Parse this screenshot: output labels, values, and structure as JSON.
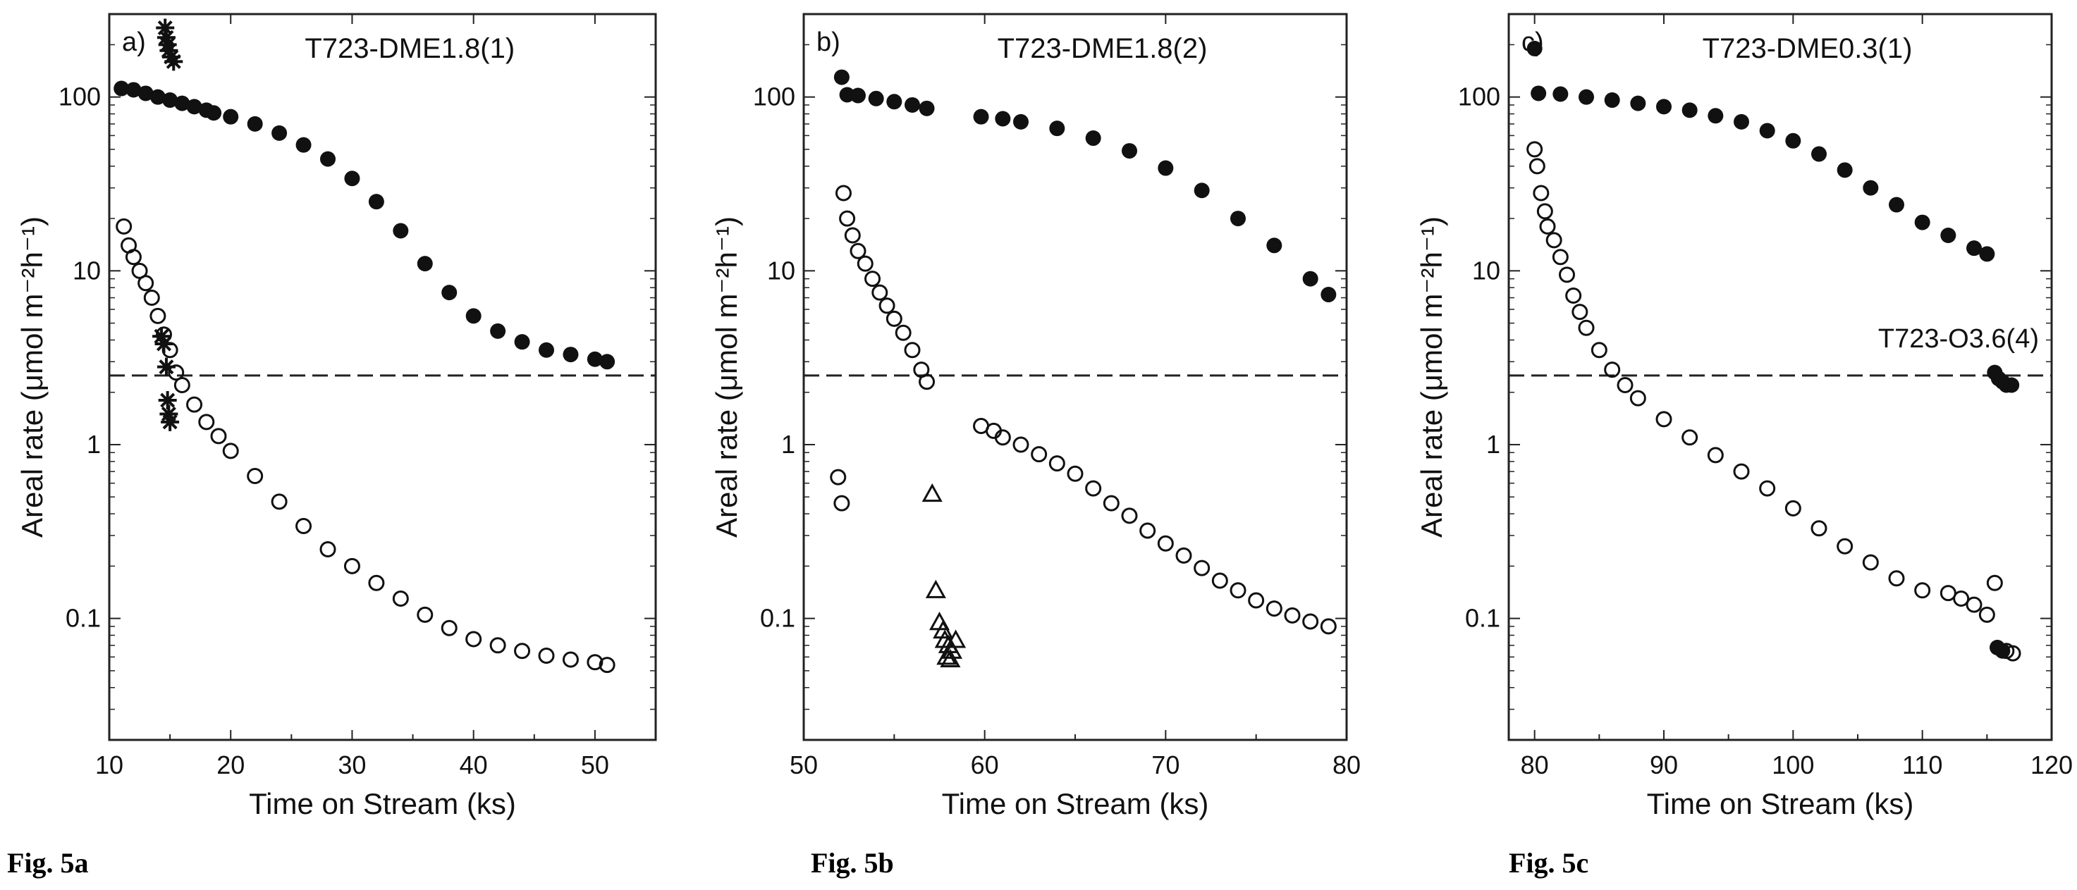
{
  "chart_data": [
    {
      "type": "scatter",
      "panel_label": "a)",
      "annotation": "T723-DME1.8(1)",
      "caption": "Fig. 5a",
      "xlabel": "Time on Stream (ks)",
      "ylabel": "Areal rate (μmol m⁻²h⁻¹)",
      "xlim": [
        10,
        55
      ],
      "ylim": [
        0.02,
        300
      ],
      "yscale": "log",
      "x_ticks": [
        10,
        20,
        30,
        40,
        50
      ],
      "y_ticks": [
        0.1,
        1,
        10,
        100
      ],
      "y_tick_labels": [
        "0.1",
        "1",
        "10",
        "100"
      ],
      "hline": 2.5,
      "series": [
        {
          "marker": "filled-circle",
          "points": [
            [
              11,
              112
            ],
            [
              12,
              110
            ],
            [
              13,
              105
            ],
            [
              14,
              100
            ],
            [
              15,
              96
            ],
            [
              16,
              92
            ],
            [
              17,
              88
            ],
            [
              18,
              84
            ],
            [
              18.6,
              81
            ],
            [
              20,
              77
            ],
            [
              22,
              70
            ],
            [
              24,
              62
            ],
            [
              26,
              53
            ],
            [
              28,
              44
            ],
            [
              30,
              34
            ],
            [
              32,
              25
            ],
            [
              34,
              17
            ],
            [
              36,
              11
            ],
            [
              38,
              7.5
            ],
            [
              40,
              5.5
            ],
            [
              42,
              4.5
            ],
            [
              44,
              3.9
            ],
            [
              46,
              3.5
            ],
            [
              48,
              3.3
            ],
            [
              50,
              3.1
            ],
            [
              51,
              3.0
            ]
          ]
        },
        {
          "marker": "open-circle",
          "points": [
            [
              11.2,
              18
            ],
            [
              11.6,
              14
            ],
            [
              12,
              12
            ],
            [
              12.5,
              10
            ],
            [
              13,
              8.5
            ],
            [
              13.5,
              7
            ],
            [
              14,
              5.5
            ],
            [
              14.5,
              4.3
            ],
            [
              15,
              3.5
            ],
            [
              15.5,
              2.6
            ],
            [
              16,
              2.2
            ],
            [
              17,
              1.7
            ],
            [
              18,
              1.35
            ],
            [
              19,
              1.12
            ],
            [
              20,
              0.92
            ],
            [
              22,
              0.66
            ],
            [
              24,
              0.47
            ],
            [
              26,
              0.34
            ],
            [
              28,
              0.25
            ],
            [
              30,
              0.2
            ],
            [
              32,
              0.16
            ],
            [
              34,
              0.13
            ],
            [
              36,
              0.105
            ],
            [
              38,
              0.088
            ],
            [
              40,
              0.076
            ],
            [
              42,
              0.07
            ],
            [
              44,
              0.065
            ],
            [
              46,
              0.061
            ],
            [
              48,
              0.058
            ],
            [
              50,
              0.056
            ],
            [
              51,
              0.054
            ]
          ]
        },
        {
          "marker": "star",
          "points": [
            [
              14.6,
              250
            ],
            [
              14.7,
              220
            ],
            [
              14.8,
              200
            ],
            [
              14.9,
              185
            ],
            [
              15.1,
              170
            ],
            [
              15.3,
              160
            ],
            [
              14.3,
              4.2
            ],
            [
              14.5,
              3.8
            ],
            [
              14.7,
              2.8
            ],
            [
              14.8,
              1.8
            ],
            [
              14.9,
              1.5
            ],
            [
              15.0,
              1.35
            ]
          ]
        }
      ]
    },
    {
      "type": "scatter",
      "panel_label": "b)",
      "annotation": "T723-DME1.8(2)",
      "caption": "Fig. 5b",
      "xlabel": "Time on Stream (ks)",
      "ylabel": "Areal rate (μmol m⁻²h⁻¹)",
      "xlim": [
        50,
        80
      ],
      "ylim": [
        0.02,
        300
      ],
      "yscale": "log",
      "x_ticks": [
        50,
        60,
        70,
        80
      ],
      "y_ticks": [
        0.1,
        1,
        10,
        100
      ],
      "y_tick_labels": [
        "0.1",
        "1",
        "10",
        "100"
      ],
      "hline": 2.5,
      "series": [
        {
          "marker": "filled-circle",
          "points": [
            [
              52.1,
              130
            ],
            [
              52.4,
              103
            ],
            [
              53,
              102
            ],
            [
              54,
              98
            ],
            [
              55,
              94
            ],
            [
              56,
              90
            ],
            [
              56.8,
              86
            ],
            [
              59.8,
              77
            ],
            [
              61,
              75
            ],
            [
              62,
              72
            ],
            [
              64,
              66
            ],
            [
              66,
              58
            ],
            [
              68,
              49
            ],
            [
              70,
              39
            ],
            [
              72,
              29
            ],
            [
              74,
              20
            ],
            [
              76,
              14
            ],
            [
              78,
              9
            ],
            [
              79,
              7.3
            ]
          ]
        },
        {
          "marker": "open-circle",
          "points": [
            [
              52.2,
              28
            ],
            [
              52.4,
              20
            ],
            [
              52.7,
              16
            ],
            [
              53,
              13
            ],
            [
              53.4,
              11
            ],
            [
              53.8,
              9
            ],
            [
              54.2,
              7.5
            ],
            [
              54.6,
              6.3
            ],
            [
              55,
              5.3
            ],
            [
              55.5,
              4.4
            ],
            [
              56,
              3.5
            ],
            [
              56.5,
              2.7
            ],
            [
              56.8,
              2.3
            ],
            [
              51.9,
              0.65
            ],
            [
              52.1,
              0.46
            ],
            [
              59.8,
              1.28
            ],
            [
              60.5,
              1.2
            ],
            [
              61,
              1.1
            ],
            [
              62,
              1.0
            ],
            [
              63,
              0.88
            ],
            [
              64,
              0.78
            ],
            [
              65,
              0.68
            ],
            [
              66,
              0.56
            ],
            [
              67,
              0.46
            ],
            [
              68,
              0.39
            ],
            [
              69,
              0.32
            ],
            [
              70,
              0.27
            ],
            [
              71,
              0.23
            ],
            [
              72,
              0.195
            ],
            [
              73,
              0.165
            ],
            [
              74,
              0.145
            ],
            [
              75,
              0.127
            ],
            [
              76,
              0.114
            ],
            [
              77,
              0.104
            ],
            [
              78,
              0.096
            ],
            [
              79,
              0.09
            ]
          ]
        },
        {
          "marker": "open-triangle",
          "points": [
            [
              57.1,
              0.52
            ],
            [
              57.3,
              0.145
            ],
            [
              57.5,
              0.095
            ],
            [
              57.7,
              0.085
            ],
            [
              57.8,
              0.075
            ],
            [
              58,
              0.07
            ],
            [
              58.2,
              0.065
            ],
            [
              58.4,
              0.075
            ],
            [
              57.9,
              0.06
            ],
            [
              58.1,
              0.058
            ]
          ]
        }
      ]
    },
    {
      "type": "scatter",
      "panel_label": "c)",
      "annotation": "T723-DME0.3(1)",
      "annotation_2": "T723-O3.6(4)",
      "caption": "Fig. 5c",
      "xlabel": "Time on Stream (ks)",
      "ylabel": "Areal rate (μmol m⁻²h⁻¹)",
      "xlim": [
        78,
        120
      ],
      "ylim": [
        0.02,
        300
      ],
      "yscale": "log",
      "x_ticks": [
        80,
        90,
        100,
        110,
        120
      ],
      "y_ticks": [
        0.1,
        1,
        10,
        100
      ],
      "y_tick_labels": [
        "0.1",
        "1",
        "10",
        "100"
      ],
      "hline": 2.5,
      "series": [
        {
          "marker": "filled-circle",
          "points": [
            [
              80,
              190
            ],
            [
              80.3,
              105
            ],
            [
              82,
              104
            ],
            [
              84,
              100
            ],
            [
              86,
              96
            ],
            [
              88,
              92
            ],
            [
              90,
              88
            ],
            [
              92,
              84
            ],
            [
              94,
              78
            ],
            [
              96,
              72
            ],
            [
              98,
              64
            ],
            [
              100,
              56
            ],
            [
              102,
              47
            ],
            [
              104,
              38
            ],
            [
              106,
              30
            ],
            [
              108,
              24
            ],
            [
              110,
              19
            ],
            [
              112,
              16
            ],
            [
              114,
              13.5
            ],
            [
              115,
              12.5
            ],
            [
              115.6,
              2.6
            ],
            [
              115.9,
              2.4
            ],
            [
              116.2,
              2.3
            ],
            [
              116.5,
              2.2
            ],
            [
              116.9,
              2.2
            ],
            [
              115.8,
              0.068
            ],
            [
              116.2,
              0.065
            ]
          ]
        },
        {
          "marker": "open-circle",
          "points": [
            [
              80,
              50
            ],
            [
              80.2,
              40
            ],
            [
              80.5,
              28
            ],
            [
              80.8,
              22
            ],
            [
              81,
              18
            ],
            [
              81.5,
              15
            ],
            [
              82,
              12
            ],
            [
              82.5,
              9.5
            ],
            [
              83,
              7.2
            ],
            [
              83.5,
              5.8
            ],
            [
              84,
              4.7
            ],
            [
              85,
              3.5
            ],
            [
              86,
              2.7
            ],
            [
              87,
              2.2
            ],
            [
              88,
              1.85
            ],
            [
              90,
              1.4
            ],
            [
              92,
              1.1
            ],
            [
              94,
              0.87
            ],
            [
              96,
              0.7
            ],
            [
              98,
              0.56
            ],
            [
              100,
              0.43
            ],
            [
              102,
              0.33
            ],
            [
              104,
              0.26
            ],
            [
              106,
              0.21
            ],
            [
              108,
              0.17
            ],
            [
              110,
              0.145
            ],
            [
              112,
              0.14
            ],
            [
              113,
              0.13
            ],
            [
              114,
              0.12
            ],
            [
              115,
              0.105
            ],
            [
              115.6,
              0.16
            ],
            [
              116.5,
              0.065
            ],
            [
              117,
              0.063
            ]
          ]
        }
      ]
    }
  ]
}
